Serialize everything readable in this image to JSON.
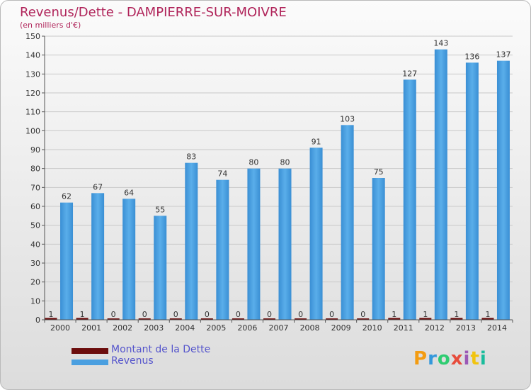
{
  "title": "Revenus/Dette - DAMPIERRE-SUR-MOIVRE",
  "subtitle": "(en milliers d'€)",
  "chart_data": {
    "type": "bar",
    "categories": [
      "2000",
      "2001",
      "2002",
      "2003",
      "2004",
      "2005",
      "2006",
      "2007",
      "2008",
      "2009",
      "2010",
      "2011",
      "2012",
      "2013",
      "2014"
    ],
    "series": [
      {
        "name": "Montant de la Dette",
        "color": "#6b0d0d",
        "values": [
          1,
          1,
          0,
          0,
          0,
          0,
          0,
          0,
          0,
          0,
          0,
          1,
          1,
          1,
          1
        ]
      },
      {
        "name": "Revenus",
        "color": "#4a9fe0",
        "values": [
          62,
          67,
          64,
          55,
          83,
          74,
          80,
          80,
          91,
          103,
          75,
          127,
          143,
          136,
          137
        ]
      }
    ],
    "ylim": [
      0,
      150
    ],
    "yticks": [
      0,
      10,
      20,
      30,
      40,
      50,
      60,
      70,
      80,
      90,
      100,
      110,
      120,
      130,
      140,
      150
    ],
    "grid": true,
    "legend_position": "bottom-left"
  },
  "legend": [
    {
      "label": "Montant de la Dette",
      "color": "#6b0d0d"
    },
    {
      "label": "Revenus",
      "color": "#4a9fe0"
    }
  ],
  "logo": {
    "text": "Proxiti",
    "colors": [
      "#f39c12",
      "#3498db",
      "#2ecc71",
      "#e74c3c",
      "#9b59b6",
      "#f1c40f",
      "#1abc9c"
    ]
  }
}
